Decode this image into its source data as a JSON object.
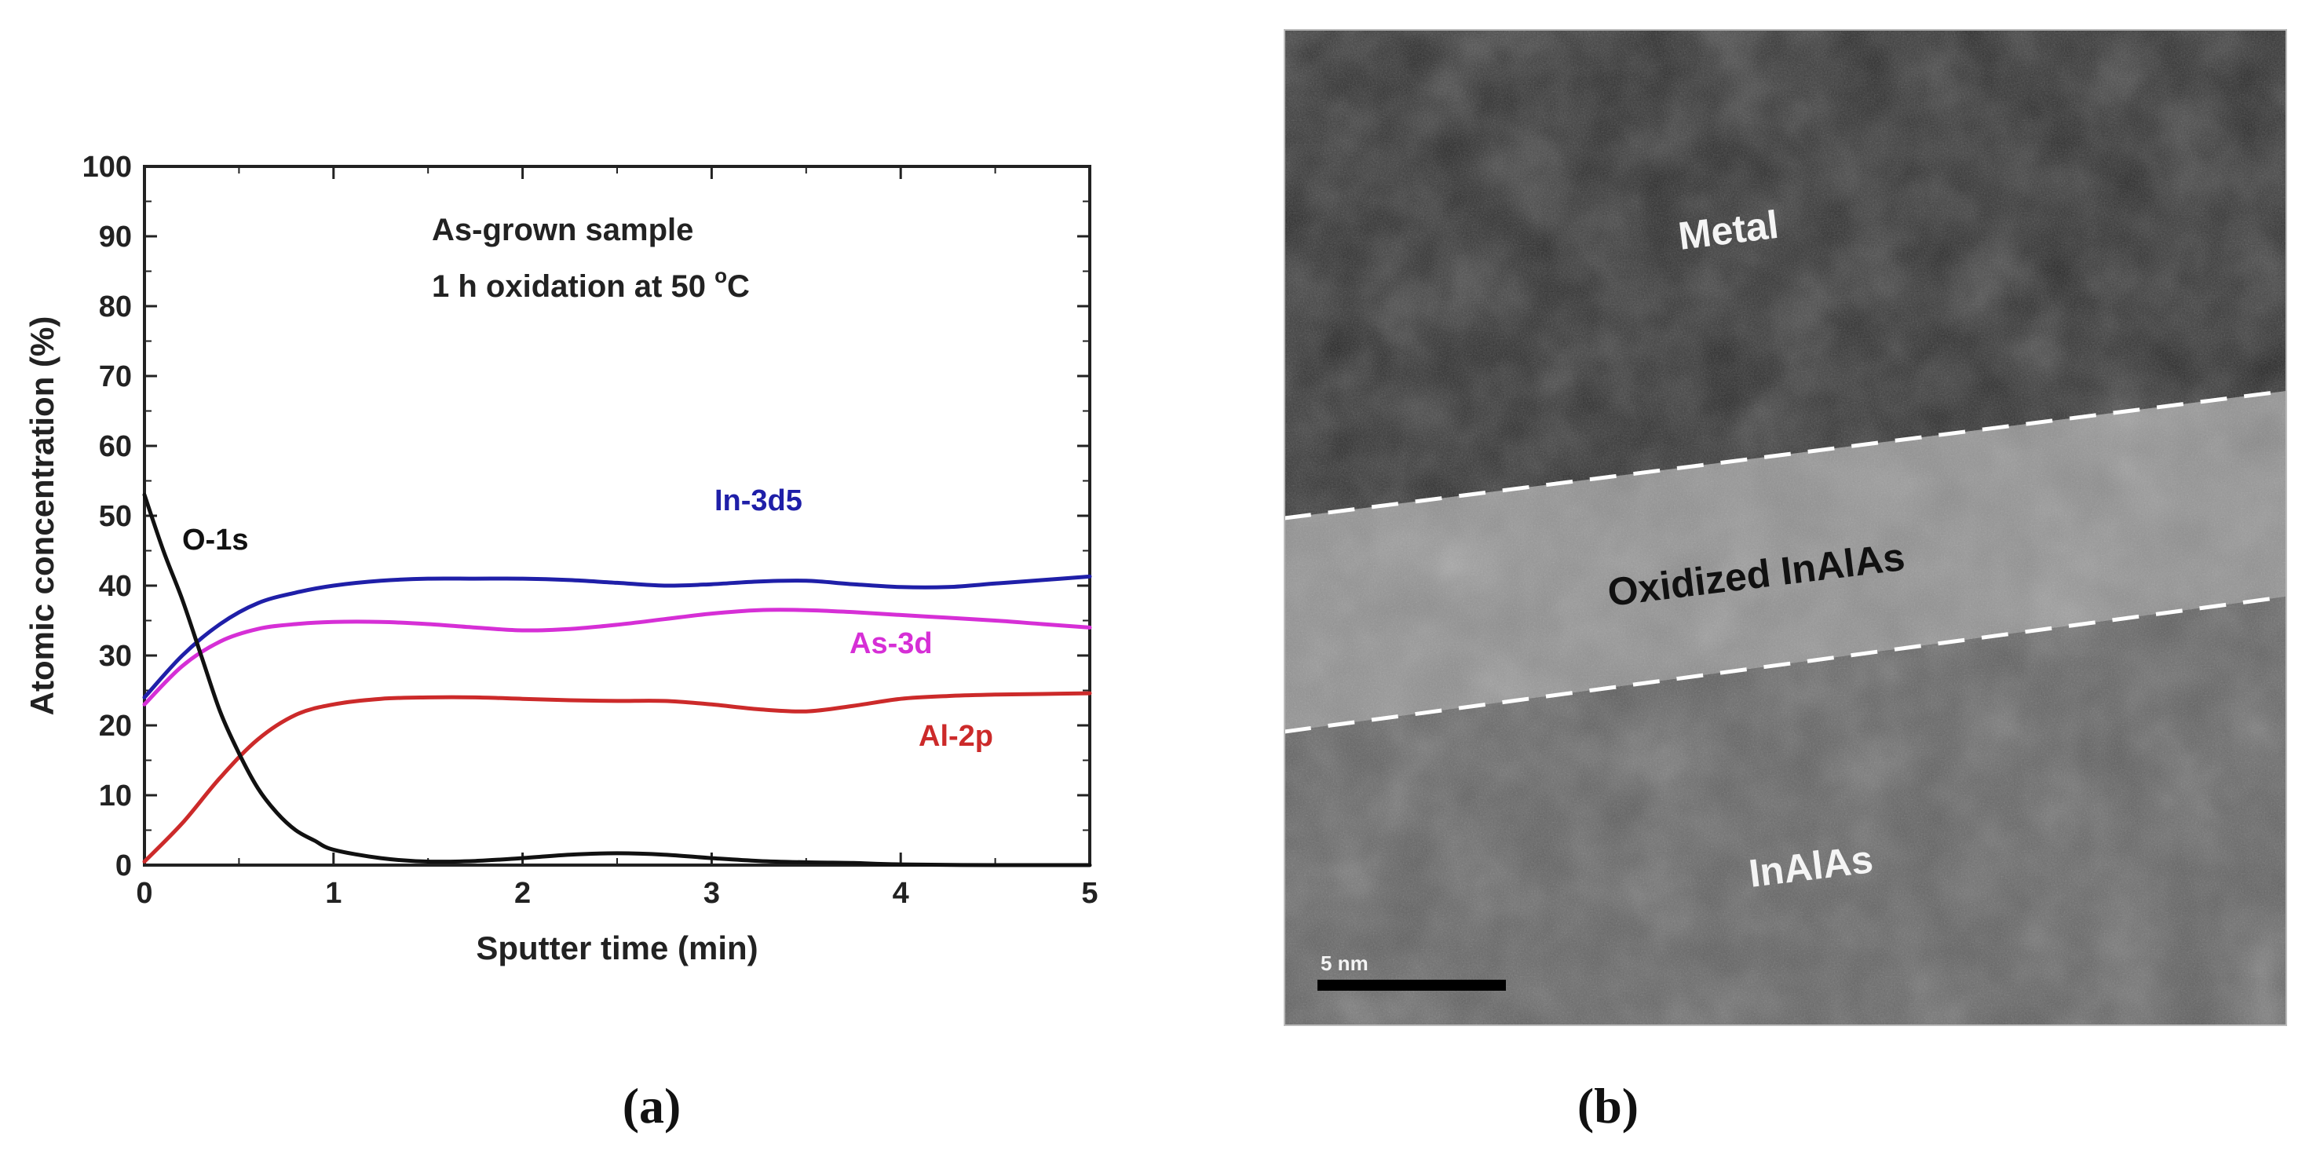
{
  "chart_data": {
    "type": "line",
    "title": "As-grown sample",
    "subtitle_prefix": "1 h oxidation at 50 ",
    "subtitle_superscript": "o",
    "subtitle_suffix": "C",
    "xlabel": "Sputter time (min)",
    "ylabel": "Atomic concentration (%)",
    "xlim": [
      0,
      5
    ],
    "ylim": [
      0,
      100
    ],
    "x_ticks": [
      0,
      1,
      2,
      3,
      4,
      5
    ],
    "y_ticks": [
      0,
      10,
      20,
      30,
      40,
      50,
      60,
      70,
      80,
      90,
      100
    ],
    "grid": false,
    "series": [
      {
        "name": "In-3d5",
        "color": "#1f1fa8",
        "x": [
          0,
          0.2,
          0.4,
          0.6,
          0.8,
          1.0,
          1.25,
          1.5,
          1.75,
          2.0,
          2.25,
          2.5,
          2.75,
          3.0,
          3.25,
          3.5,
          3.75,
          4.0,
          4.25,
          4.5,
          4.75,
          5.0
        ],
        "values": [
          24,
          30,
          34.5,
          37.5,
          39,
          40,
          40.7,
          41,
          41,
          41,
          40.8,
          40.4,
          40,
          40.2,
          40.6,
          40.7,
          40.2,
          39.8,
          39.8,
          40.3,
          40.8,
          41.3
        ]
      },
      {
        "name": "As-3d",
        "color": "#d62fd6",
        "x": [
          0,
          0.2,
          0.4,
          0.6,
          0.8,
          1.0,
          1.25,
          1.5,
          1.75,
          2.0,
          2.25,
          2.5,
          2.75,
          3.0,
          3.25,
          3.5,
          3.75,
          4.0,
          4.25,
          4.5,
          4.75,
          5.0
        ],
        "values": [
          23,
          28.5,
          32,
          33.8,
          34.5,
          34.8,
          34.8,
          34.5,
          34,
          33.6,
          33.8,
          34.4,
          35.2,
          36,
          36.5,
          36.5,
          36.2,
          35.8,
          35.4,
          35,
          34.5,
          34
        ]
      },
      {
        "name": "Al-2p",
        "color": "#cc2a2a",
        "x": [
          0,
          0.2,
          0.4,
          0.6,
          0.8,
          1.0,
          1.25,
          1.5,
          1.75,
          2.0,
          2.25,
          2.5,
          2.75,
          3.0,
          3.25,
          3.5,
          3.75,
          4.0,
          4.25,
          4.5,
          4.75,
          5.0
        ],
        "values": [
          0.5,
          6,
          12.5,
          18,
          21.5,
          23,
          23.8,
          24,
          24,
          23.8,
          23.6,
          23.5,
          23.5,
          23,
          22.3,
          22,
          22.8,
          23.8,
          24.2,
          24.4,
          24.5,
          24.6
        ]
      },
      {
        "name": "O-1s",
        "color": "#111111",
        "x": [
          0,
          0.1,
          0.2,
          0.3,
          0.4,
          0.5,
          0.6,
          0.7,
          0.8,
          0.9,
          1.0,
          1.25,
          1.5,
          1.75,
          2.0,
          2.25,
          2.5,
          2.75,
          3.0,
          3.25,
          3.5,
          3.75,
          4.0,
          4.5,
          5.0
        ],
        "values": [
          53,
          45,
          38,
          30,
          22,
          16,
          11,
          7.5,
          5,
          3.5,
          2.2,
          1.0,
          0.5,
          0.6,
          1.0,
          1.5,
          1.7,
          1.5,
          1.0,
          0.6,
          0.4,
          0.3,
          0.1,
          0,
          0
        ]
      }
    ]
  },
  "panel_b": {
    "labels": {
      "metal": "Metal",
      "oxide": "Oxidized InAlAs",
      "substrate": "InAlAs",
      "scale_bar": "5 nm"
    }
  },
  "captions": {
    "a": "(a)",
    "b": "(b)"
  }
}
